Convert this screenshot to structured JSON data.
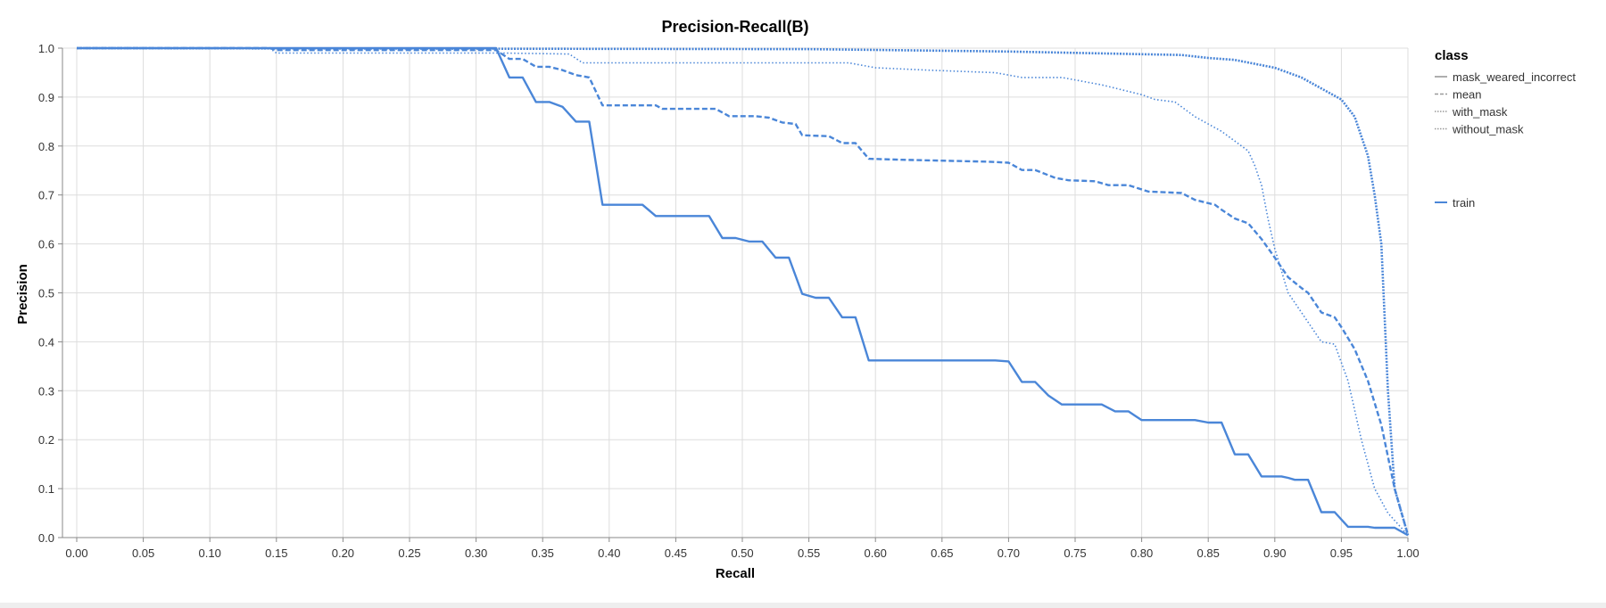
{
  "chart_data": {
    "type": "line",
    "title": "Precision-Recall(B)",
    "xlabel": "Recall",
    "ylabel": "Precision",
    "xlim": [
      0,
      1
    ],
    "ylim": [
      0,
      1
    ],
    "grid": true,
    "xticks": [
      "0.00",
      "0.05",
      "0.10",
      "0.15",
      "0.20",
      "0.25",
      "0.30",
      "0.35",
      "0.40",
      "0.45",
      "0.50",
      "0.55",
      "0.60",
      "0.65",
      "0.70",
      "0.75",
      "0.80",
      "0.85",
      "0.90",
      "0.95",
      "1.00"
    ],
    "yticks": [
      "0.0",
      "0.1",
      "0.2",
      "0.3",
      "0.4",
      "0.5",
      "0.6",
      "0.7",
      "0.8",
      "0.9",
      "1.0"
    ],
    "color": "#4a86d8",
    "legend": {
      "position": "right",
      "class_title": "class",
      "class_entries": [
        {
          "name": "mask_weared_incorrect",
          "style": "solid"
        },
        {
          "name": "mean",
          "style": "dashed"
        },
        {
          "name": "with_mask",
          "style": "dense-dotted"
        },
        {
          "name": "without_mask",
          "style": "dotted"
        }
      ],
      "run_entries": [
        {
          "name": "train",
          "style": "solid"
        }
      ]
    },
    "series": [
      {
        "name": "mask_weared_incorrect",
        "style": "solid",
        "points": [
          [
            0,
            1
          ],
          [
            0.315,
            1
          ],
          [
            0.325,
            0.94
          ],
          [
            0.335,
            0.94
          ],
          [
            0.345,
            0.89
          ],
          [
            0.355,
            0.89
          ],
          [
            0.365,
            0.88
          ],
          [
            0.375,
            0.85
          ],
          [
            0.385,
            0.85
          ],
          [
            0.395,
            0.68
          ],
          [
            0.425,
            0.68
          ],
          [
            0.435,
            0.657
          ],
          [
            0.475,
            0.657
          ],
          [
            0.485,
            0.612
          ],
          [
            0.495,
            0.612
          ],
          [
            0.505,
            0.605
          ],
          [
            0.515,
            0.605
          ],
          [
            0.525,
            0.572
          ],
          [
            0.535,
            0.572
          ],
          [
            0.545,
            0.498
          ],
          [
            0.555,
            0.49
          ],
          [
            0.565,
            0.49
          ],
          [
            0.575,
            0.45
          ],
          [
            0.585,
            0.45
          ],
          [
            0.595,
            0.362
          ],
          [
            0.69,
            0.362
          ],
          [
            0.7,
            0.36
          ],
          [
            0.71,
            0.318
          ],
          [
            0.72,
            0.318
          ],
          [
            0.73,
            0.29
          ],
          [
            0.74,
            0.272
          ],
          [
            0.77,
            0.272
          ],
          [
            0.78,
            0.258
          ],
          [
            0.79,
            0.258
          ],
          [
            0.8,
            0.24
          ],
          [
            0.84,
            0.24
          ],
          [
            0.85,
            0.235
          ],
          [
            0.86,
            0.235
          ],
          [
            0.87,
            0.17
          ],
          [
            0.88,
            0.17
          ],
          [
            0.89,
            0.125
          ],
          [
            0.905,
            0.125
          ],
          [
            0.91,
            0.122
          ],
          [
            0.915,
            0.118
          ],
          [
            0.925,
            0.118
          ],
          [
            0.935,
            0.052
          ],
          [
            0.945,
            0.052
          ],
          [
            0.955,
            0.022
          ],
          [
            0.97,
            0.022
          ],
          [
            0.975,
            0.02
          ],
          [
            0.99,
            0.02
          ],
          [
            1.0,
            0.005
          ]
        ]
      },
      {
        "name": "mean",
        "style": "dashed",
        "points": [
          [
            0,
            1
          ],
          [
            0.145,
            1
          ],
          [
            0.15,
            0.996
          ],
          [
            0.315,
            0.996
          ],
          [
            0.325,
            0.978
          ],
          [
            0.335,
            0.978
          ],
          [
            0.345,
            0.962
          ],
          [
            0.355,
            0.962
          ],
          [
            0.365,
            0.955
          ],
          [
            0.375,
            0.945
          ],
          [
            0.385,
            0.94
          ],
          [
            0.395,
            0.883
          ],
          [
            0.435,
            0.883
          ],
          [
            0.44,
            0.876
          ],
          [
            0.48,
            0.876
          ],
          [
            0.49,
            0.861
          ],
          [
            0.51,
            0.861
          ],
          [
            0.52,
            0.858
          ],
          [
            0.53,
            0.848
          ],
          [
            0.54,
            0.845
          ],
          [
            0.545,
            0.822
          ],
          [
            0.565,
            0.82
          ],
          [
            0.575,
            0.806
          ],
          [
            0.585,
            0.806
          ],
          [
            0.595,
            0.774
          ],
          [
            0.62,
            0.772
          ],
          [
            0.685,
            0.768
          ],
          [
            0.7,
            0.766
          ],
          [
            0.71,
            0.751
          ],
          [
            0.72,
            0.751
          ],
          [
            0.735,
            0.735
          ],
          [
            0.745,
            0.73
          ],
          [
            0.765,
            0.728
          ],
          [
            0.775,
            0.72
          ],
          [
            0.79,
            0.72
          ],
          [
            0.805,
            0.707
          ],
          [
            0.83,
            0.704
          ],
          [
            0.84,
            0.69
          ],
          [
            0.855,
            0.68
          ],
          [
            0.86,
            0.67
          ],
          [
            0.87,
            0.652
          ],
          [
            0.88,
            0.642
          ],
          [
            0.89,
            0.61
          ],
          [
            0.9,
            0.572
          ],
          [
            0.91,
            0.532
          ],
          [
            0.92,
            0.51
          ],
          [
            0.925,
            0.5
          ],
          [
            0.935,
            0.46
          ],
          [
            0.945,
            0.45
          ],
          [
            0.95,
            0.43
          ],
          [
            0.96,
            0.385
          ],
          [
            0.97,
            0.32
          ],
          [
            0.98,
            0.23
          ],
          [
            0.99,
            0.1
          ],
          [
            1.0,
            0.005
          ]
        ]
      },
      {
        "name": "with_mask",
        "style": "dense-dotted",
        "points": [
          [
            0,
            1
          ],
          [
            0.55,
            0.998
          ],
          [
            0.7,
            0.993
          ],
          [
            0.83,
            0.986
          ],
          [
            0.85,
            0.98
          ],
          [
            0.87,
            0.976
          ],
          [
            0.9,
            0.96
          ],
          [
            0.92,
            0.94
          ],
          [
            0.94,
            0.91
          ],
          [
            0.95,
            0.895
          ],
          [
            0.96,
            0.86
          ],
          [
            0.97,
            0.78
          ],
          [
            0.975,
            0.7
          ],
          [
            0.98,
            0.6
          ],
          [
            0.985,
            0.3
          ],
          [
            0.99,
            0.1
          ],
          [
            1.0,
            0.005
          ]
        ]
      },
      {
        "name": "without_mask",
        "style": "dotted",
        "points": [
          [
            0,
            1
          ],
          [
            0.145,
            1
          ],
          [
            0.15,
            0.99
          ],
          [
            0.31,
            0.99
          ],
          [
            0.32,
            0.99
          ],
          [
            0.37,
            0.988
          ],
          [
            0.38,
            0.97
          ],
          [
            0.58,
            0.97
          ],
          [
            0.6,
            0.96
          ],
          [
            0.64,
            0.955
          ],
          [
            0.69,
            0.95
          ],
          [
            0.71,
            0.94
          ],
          [
            0.74,
            0.94
          ],
          [
            0.77,
            0.925
          ],
          [
            0.8,
            0.905
          ],
          [
            0.81,
            0.895
          ],
          [
            0.825,
            0.89
          ],
          [
            0.84,
            0.86
          ],
          [
            0.86,
            0.83
          ],
          [
            0.88,
            0.79
          ],
          [
            0.885,
            0.76
          ],
          [
            0.89,
            0.72
          ],
          [
            0.895,
            0.65
          ],
          [
            0.9,
            0.59
          ],
          [
            0.91,
            0.5
          ],
          [
            0.925,
            0.44
          ],
          [
            0.935,
            0.4
          ],
          [
            0.945,
            0.395
          ],
          [
            0.955,
            0.32
          ],
          [
            0.965,
            0.2
          ],
          [
            0.975,
            0.1
          ],
          [
            0.985,
            0.05
          ],
          [
            1.0,
            0.005
          ]
        ]
      }
    ]
  }
}
